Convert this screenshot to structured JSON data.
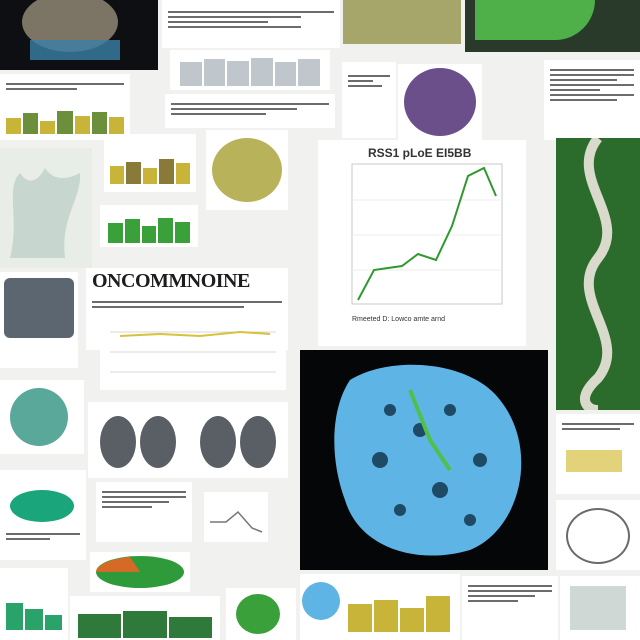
{
  "collage": {
    "heading_text": "ONCOMMNOINE",
    "chart_caption_text": "RSS1 pLoE EI5BB",
    "chart_xlabel_text": "Rmeeted D: Lowco amte arnd"
  },
  "colors": {
    "background": "#f1f1ef",
    "accent_green": "#3aa13a",
    "accent_blue": "#5fb4e6",
    "accent_purple": "#6b4f8a",
    "mustard": "#c9b43a"
  },
  "icons": [
    "organic-blob-icon",
    "coral-shape-icon",
    "pie-slice-icon"
  ]
}
